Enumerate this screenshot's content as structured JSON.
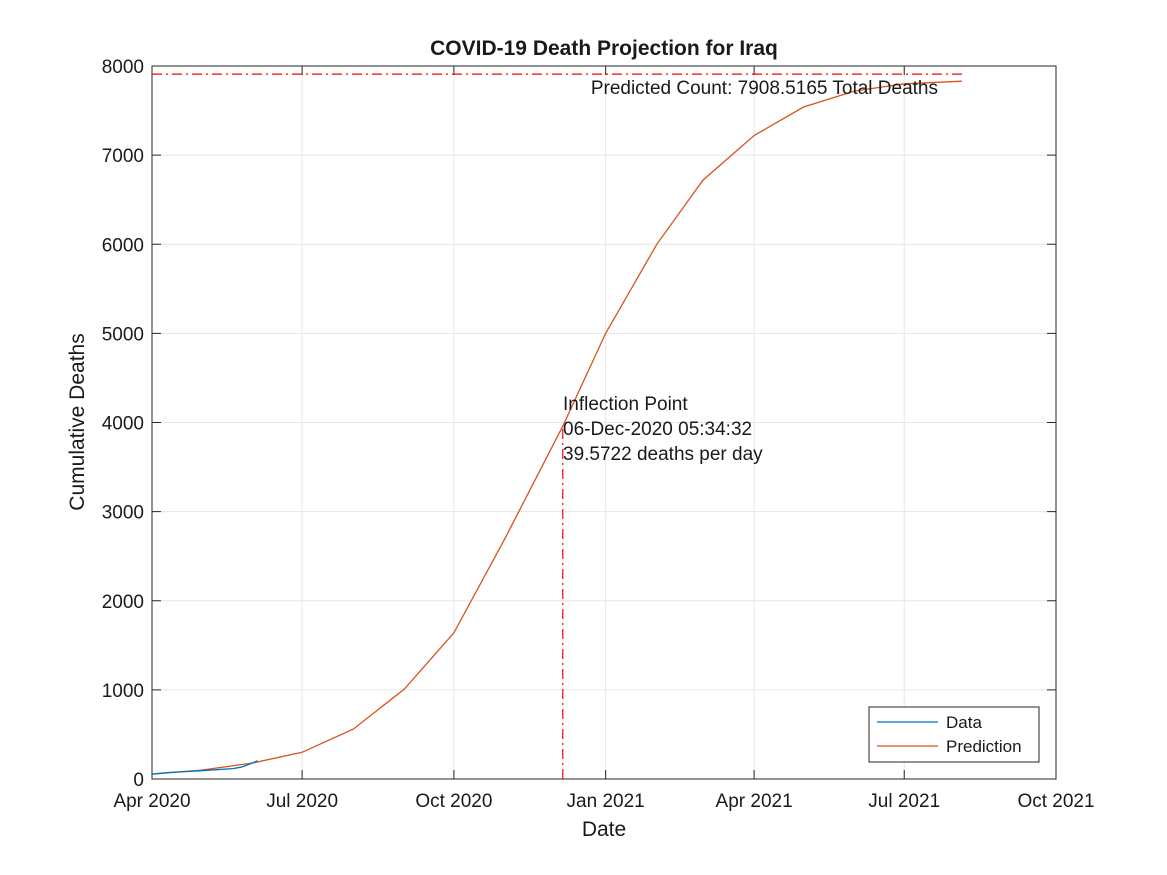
{
  "chart_data": {
    "type": "line",
    "title": "COVID-19 Death Projection for Iraq",
    "xlabel": "Date",
    "ylabel": "Cumulative Deaths",
    "xlim": [
      "2020-04-01",
      "2021-10-01"
    ],
    "ylim": [
      0,
      8000
    ],
    "grid": true,
    "legend_position": "bottom-right",
    "x_ticks": [
      "2020-04-01",
      "2020-07-01",
      "2020-10-01",
      "2021-01-01",
      "2021-04-01",
      "2021-07-01",
      "2021-10-01"
    ],
    "x_tick_labels": [
      "Apr 2020",
      "Jul 2020",
      "Oct 2020",
      "Jan 2021",
      "Apr 2021",
      "Jul 2021",
      "Oct 2021"
    ],
    "y_ticks": [
      0,
      1000,
      2000,
      3000,
      4000,
      5000,
      6000,
      7000,
      8000
    ],
    "y_tick_labels": [
      "0",
      "1000",
      "2000",
      "3000",
      "4000",
      "5000",
      "6000",
      "7000",
      "8000"
    ],
    "series": [
      {
        "name": "Data",
        "color": "#0072BD",
        "x": [
          "2020-04-01",
          "2020-04-10",
          "2020-04-20",
          "2020-05-01",
          "2020-05-10",
          "2020-05-20",
          "2020-05-25",
          "2020-05-30",
          "2020-06-04"
        ],
        "y": [
          54,
          72,
          82,
          93,
          104,
          117,
          132,
          165,
          205
        ]
      },
      {
        "name": "Prediction",
        "color": "#D95319",
        "x": [
          "2020-04-01",
          "2020-05-01",
          "2020-06-01",
          "2020-07-01",
          "2020-08-01",
          "2020-09-01",
          "2020-10-01",
          "2020-11-01",
          "2020-12-06",
          "2021-01-01",
          "2021-02-01",
          "2021-03-01",
          "2021-04-01",
          "2021-05-01",
          "2021-06-01",
          "2021-07-01",
          "2021-08-05"
        ],
        "y": [
          55,
          100,
          180,
          300,
          560,
          1010,
          1640,
          2700,
          3960,
          5000,
          6000,
          6720,
          7220,
          7540,
          7720,
          7800,
          7830
        ]
      }
    ],
    "asymptote": {
      "value": 7908.5165,
      "color": "#FF0000",
      "x_start": "2020-04-01",
      "x_end": "2021-08-05",
      "label": "Predicted Count: 7908.5165 Total Deaths"
    },
    "inflection": {
      "date": "2020-12-06",
      "color": "#FF0000",
      "lines": [
        "Inflection Point",
        "06-Dec-2020 05:34:32",
        "39.5722 deaths per day"
      ]
    }
  }
}
